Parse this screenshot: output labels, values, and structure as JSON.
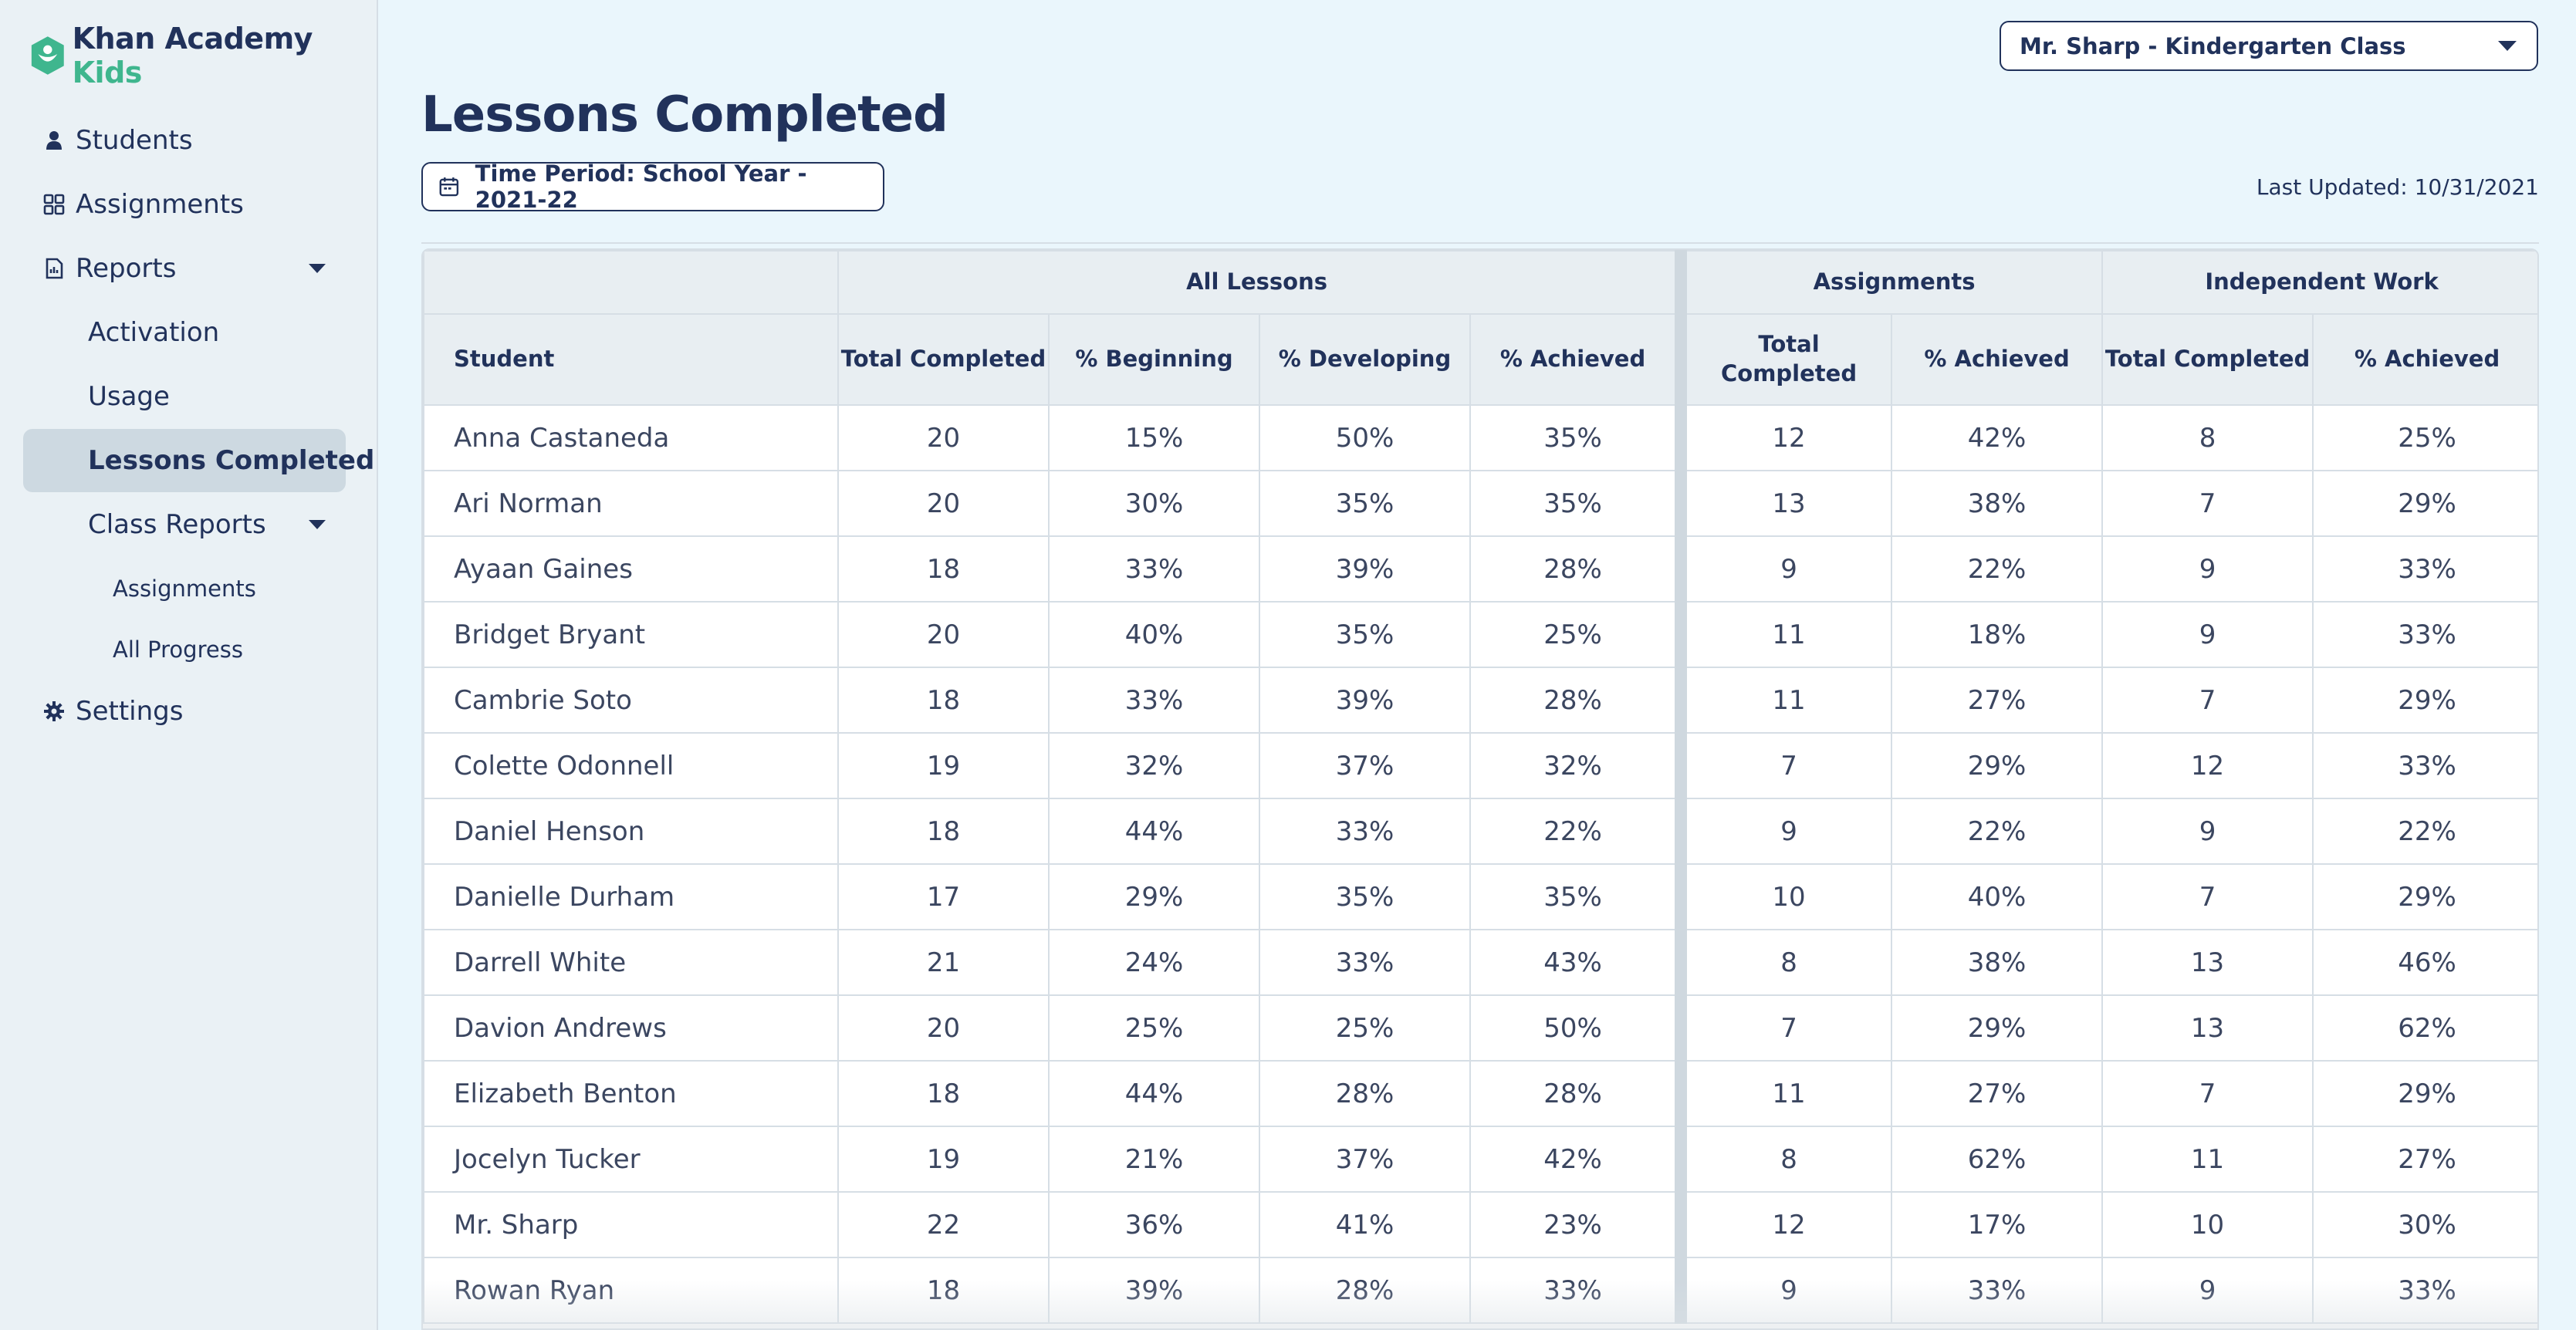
{
  "brand": {
    "name": "Khan Academy",
    "suffix": "Kids"
  },
  "sidebar": {
    "students": "Students",
    "assignments": "Assignments",
    "reports": "Reports",
    "activation": "Activation",
    "usage": "Usage",
    "lessons_completed": "Lessons Completed",
    "class_reports": "Class Reports",
    "class_assignments": "Assignments",
    "all_progress": "All Progress",
    "settings": "Settings"
  },
  "header": {
    "class_select": "Mr. Sharp - Kindergarten Class",
    "title": "Lessons Completed",
    "time_period": "Time Period: School Year - 2021-22",
    "last_updated": "Last Updated: 10/31/2021"
  },
  "table": {
    "groups": {
      "all_lessons": "All Lessons",
      "assignments": "Assignments",
      "independent": "Independent Work"
    },
    "columns": {
      "student": "Student",
      "total_completed": "Total Completed",
      "beginning": "% Beginning",
      "developing": "% Developing",
      "achieved": "% Achieved",
      "a_total": "Total Completed",
      "a_achieved": "% Achieved",
      "i_total": "Total Completed",
      "i_achieved": "% Achieved"
    },
    "rows": [
      [
        "Anna Castaneda",
        "20",
        "15%",
        "50%",
        "35%",
        "12",
        "42%",
        "8",
        "25%"
      ],
      [
        "Ari Norman",
        "20",
        "30%",
        "35%",
        "35%",
        "13",
        "38%",
        "7",
        "29%"
      ],
      [
        "Ayaan Gaines",
        "18",
        "33%",
        "39%",
        "28%",
        "9",
        "22%",
        "9",
        "33%"
      ],
      [
        "Bridget Bryant",
        "20",
        "40%",
        "35%",
        "25%",
        "11",
        "18%",
        "9",
        "33%"
      ],
      [
        "Cambrie Soto",
        "18",
        "33%",
        "39%",
        "28%",
        "11",
        "27%",
        "7",
        "29%"
      ],
      [
        "Colette Odonnell",
        "19",
        "32%",
        "37%",
        "32%",
        "7",
        "29%",
        "12",
        "33%"
      ],
      [
        "Daniel Henson",
        "18",
        "44%",
        "33%",
        "22%",
        "9",
        "22%",
        "9",
        "22%"
      ],
      [
        "Danielle Durham",
        "17",
        "29%",
        "35%",
        "35%",
        "10",
        "40%",
        "7",
        "29%"
      ],
      [
        "Darrell White",
        "21",
        "24%",
        "33%",
        "43%",
        "8",
        "38%",
        "13",
        "46%"
      ],
      [
        "Davion Andrews",
        "20",
        "25%",
        "25%",
        "50%",
        "7",
        "29%",
        "13",
        "62%"
      ],
      [
        "Elizabeth Benton",
        "18",
        "44%",
        "28%",
        "28%",
        "11",
        "27%",
        "7",
        "29%"
      ],
      [
        "Jocelyn Tucker",
        "19",
        "21%",
        "37%",
        "42%",
        "8",
        "62%",
        "11",
        "27%"
      ],
      [
        "Mr. Sharp",
        "22",
        "36%",
        "41%",
        "23%",
        "12",
        "17%",
        "10",
        "30%"
      ],
      [
        "Rowan Ryan",
        "18",
        "39%",
        "28%",
        "33%",
        "9",
        "33%",
        "9",
        "33%"
      ]
    ]
  }
}
